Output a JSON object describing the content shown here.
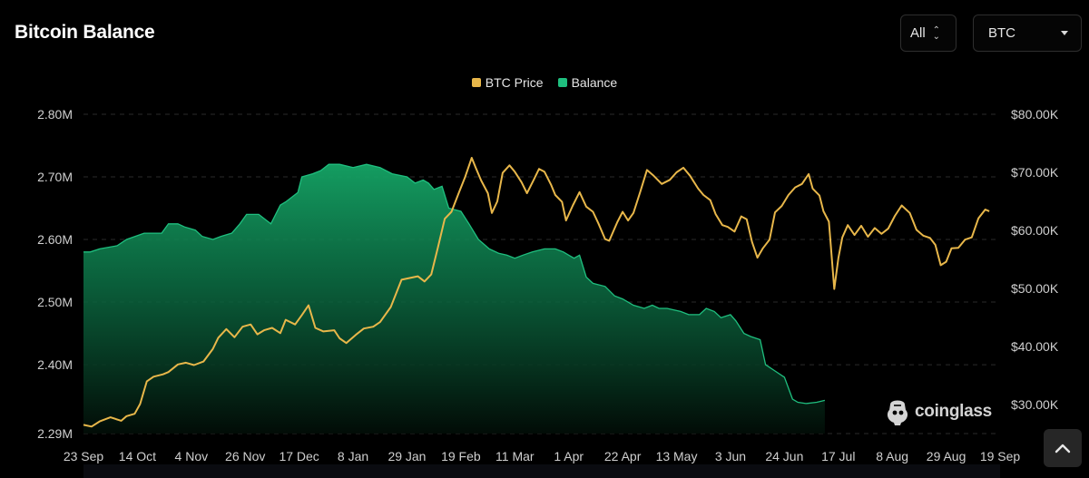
{
  "header": {
    "title": "Bitcoin Balance"
  },
  "controls": {
    "range_label": "All",
    "asset_label": "BTC"
  },
  "legend": [
    {
      "label": "BTC Price",
      "color": "#e8b74a"
    },
    {
      "label": "Balance",
      "color": "#1fbf7f"
    }
  ],
  "watermark": {
    "text": "coinglass"
  },
  "chart_data": {
    "type": "area",
    "x_labels": [
      "23 Sep",
      "14 Oct",
      "4 Nov",
      "26 Nov",
      "17 Dec",
      "8 Jan",
      "29 Jan",
      "19 Feb",
      "11 Mar",
      "1 Apr",
      "22 Apr",
      "13 May",
      "3 Jun",
      "24 Jun",
      "17 Jul",
      "8 Aug",
      "29 Aug",
      "19 Sep"
    ],
    "grid": true,
    "y_left": {
      "ticks": [
        "2.29M",
        "2.40M",
        "2.50M",
        "2.60M",
        "2.70M",
        "2.80M"
      ],
      "tick_values": [
        2.29,
        2.4,
        2.5,
        2.6,
        2.7,
        2.8
      ],
      "ylim": [
        2.29,
        2.8
      ]
    },
    "y_right": {
      "ticks": [
        "$30.00K",
        "$40.00K",
        "$50.00K",
        "$60.00K",
        "$70.00K",
        "$80.00K"
      ],
      "tick_values": [
        30,
        40,
        50,
        60,
        70,
        80
      ],
      "ylim": [
        25,
        80
      ]
    },
    "series": [
      {
        "name": "Balance",
        "axis": "left",
        "color": "#1fbf7f",
        "points": [
          [
            0,
            2.58
          ],
          [
            0.5,
            2.58
          ],
          [
            1.2,
            2.585
          ],
          [
            2.5,
            2.59
          ],
          [
            3.2,
            2.6
          ],
          [
            4.5,
            2.61
          ],
          [
            5.8,
            2.61
          ],
          [
            6.3,
            2.625
          ],
          [
            7.0,
            2.625
          ],
          [
            7.5,
            2.62
          ],
          [
            8.3,
            2.615
          ],
          [
            8.8,
            2.605
          ],
          [
            9.6,
            2.6
          ],
          [
            10.2,
            2.605
          ],
          [
            11.0,
            2.61
          ],
          [
            11.6,
            2.625
          ],
          [
            12.1,
            2.64
          ],
          [
            13.0,
            2.64
          ],
          [
            13.9,
            2.625
          ],
          [
            14.6,
            2.655
          ],
          [
            15.0,
            2.66
          ],
          [
            15.9,
            2.675
          ],
          [
            16.2,
            2.7
          ],
          [
            17.0,
            2.705
          ],
          [
            17.6,
            2.71
          ],
          [
            18.2,
            2.72
          ],
          [
            19.0,
            2.72
          ],
          [
            20.0,
            2.715
          ],
          [
            21.0,
            2.72
          ],
          [
            22.0,
            2.715
          ],
          [
            22.9,
            2.705
          ],
          [
            24.0,
            2.7
          ],
          [
            24.6,
            2.69
          ],
          [
            25.2,
            2.695
          ],
          [
            25.6,
            2.69
          ],
          [
            26.0,
            2.68
          ],
          [
            26.6,
            2.685
          ],
          [
            27.1,
            2.65
          ],
          [
            28.0,
            2.645
          ],
          [
            28.6,
            2.625
          ],
          [
            29.3,
            2.6
          ],
          [
            30.1,
            2.585
          ],
          [
            30.8,
            2.578
          ],
          [
            31.4,
            2.575
          ],
          [
            32.0,
            2.57
          ],
          [
            32.6,
            2.575
          ],
          [
            33.3,
            2.58
          ],
          [
            34.2,
            2.585
          ],
          [
            35.0,
            2.585
          ],
          [
            35.6,
            2.58
          ],
          [
            36.0,
            2.575
          ],
          [
            36.4,
            2.57
          ],
          [
            36.8,
            2.575
          ],
          [
            37.3,
            2.54
          ],
          [
            37.8,
            2.53
          ],
          [
            38.7,
            2.525
          ],
          [
            39.4,
            2.51
          ],
          [
            40.0,
            2.505
          ],
          [
            40.8,
            2.495
          ],
          [
            41.6,
            2.49
          ],
          [
            42.2,
            2.495
          ],
          [
            42.7,
            2.49
          ],
          [
            43.3,
            2.49
          ],
          [
            44.3,
            2.485
          ],
          [
            44.9,
            2.48
          ],
          [
            45.7,
            2.48
          ],
          [
            46.2,
            2.49
          ],
          [
            46.8,
            2.485
          ],
          [
            47.3,
            2.475
          ],
          [
            48.0,
            2.48
          ],
          [
            48.4,
            2.47
          ],
          [
            49.0,
            2.45
          ],
          [
            49.5,
            2.445
          ],
          [
            50.2,
            2.44
          ],
          [
            50.6,
            2.4
          ],
          [
            51.3,
            2.39
          ],
          [
            52.0,
            2.38
          ],
          [
            52.6,
            2.345
          ],
          [
            53.0,
            2.34
          ],
          [
            53.6,
            2.338
          ],
          [
            54.4,
            2.34
          ],
          [
            55.0,
            2.343
          ]
        ]
      },
      {
        "name": "BTC Price",
        "axis": "right",
        "color": "#e8b74a",
        "points": [
          [
            0,
            26.5
          ],
          [
            0.6,
            26.2
          ],
          [
            1.2,
            27.1
          ],
          [
            2.0,
            27.8
          ],
          [
            2.8,
            27.2
          ],
          [
            3.2,
            28.0
          ],
          [
            3.8,
            28.4
          ],
          [
            4.2,
            30.1
          ],
          [
            4.7,
            34.0
          ],
          [
            5.2,
            34.8
          ],
          [
            5.9,
            35.2
          ],
          [
            6.3,
            35.6
          ],
          [
            7.0,
            36.9
          ],
          [
            7.6,
            37.2
          ],
          [
            8.2,
            36.8
          ],
          [
            8.9,
            37.4
          ],
          [
            9.6,
            39.6
          ],
          [
            10.0,
            41.5
          ],
          [
            10.6,
            43.0
          ],
          [
            11.2,
            41.6
          ],
          [
            11.8,
            43.4
          ],
          [
            12.4,
            43.8
          ],
          [
            12.9,
            42.1
          ],
          [
            13.4,
            42.8
          ],
          [
            14.0,
            43.2
          ],
          [
            14.6,
            42.3
          ],
          [
            15.0,
            44.6
          ],
          [
            15.7,
            43.8
          ],
          [
            16.2,
            45.4
          ],
          [
            16.7,
            47.1
          ],
          [
            17.2,
            43.2
          ],
          [
            17.8,
            42.6
          ],
          [
            18.6,
            42.8
          ],
          [
            19.0,
            41.4
          ],
          [
            19.5,
            40.6
          ],
          [
            20.2,
            42.0
          ],
          [
            20.8,
            43.1
          ],
          [
            21.5,
            43.4
          ],
          [
            22.0,
            44.2
          ],
          [
            22.8,
            46.8
          ],
          [
            23.6,
            51.5
          ],
          [
            24.2,
            51.8
          ],
          [
            24.8,
            52.1
          ],
          [
            25.3,
            51.2
          ],
          [
            25.8,
            52.4
          ],
          [
            26.3,
            57.1
          ],
          [
            26.8,
            62.0
          ],
          [
            27.3,
            63.2
          ],
          [
            27.9,
            66.8
          ],
          [
            28.3,
            69.1
          ],
          [
            28.8,
            72.5
          ],
          [
            29.1,
            70.8
          ],
          [
            29.5,
            68.6
          ],
          [
            30.0,
            66.4
          ],
          [
            30.3,
            63.0
          ],
          [
            30.7,
            65.0
          ],
          [
            31.1,
            69.9
          ],
          [
            31.6,
            71.2
          ],
          [
            32.0,
            70.1
          ],
          [
            32.5,
            68.3
          ],
          [
            32.9,
            66.4
          ],
          [
            33.4,
            68.7
          ],
          [
            33.8,
            70.6
          ],
          [
            34.2,
            70.1
          ],
          [
            34.7,
            67.8
          ],
          [
            35.0,
            66.1
          ],
          [
            35.5,
            64.9
          ],
          [
            35.8,
            61.7
          ],
          [
            36.3,
            64.3
          ],
          [
            36.8,
            66.6
          ],
          [
            37.3,
            64.1
          ],
          [
            37.8,
            63.2
          ],
          [
            38.2,
            61.2
          ],
          [
            38.7,
            58.5
          ],
          [
            39.0,
            58.2
          ],
          [
            39.6,
            61.4
          ],
          [
            40.0,
            63.2
          ],
          [
            40.4,
            61.7
          ],
          [
            40.8,
            63.0
          ],
          [
            41.3,
            66.6
          ],
          [
            41.8,
            70.4
          ],
          [
            42.3,
            69.4
          ],
          [
            42.9,
            68.0
          ],
          [
            43.5,
            68.7
          ],
          [
            44.0,
            70.0
          ],
          [
            44.5,
            70.8
          ],
          [
            45.0,
            69.4
          ],
          [
            45.6,
            67.2
          ],
          [
            46.0,
            66.1
          ],
          [
            46.5,
            65.2
          ],
          [
            46.9,
            62.8
          ],
          [
            47.4,
            60.9
          ],
          [
            47.8,
            60.6
          ],
          [
            48.3,
            59.8
          ],
          [
            48.8,
            62.4
          ],
          [
            49.2,
            61.9
          ],
          [
            49.6,
            58.0
          ],
          [
            50.0,
            55.3
          ],
          [
            50.4,
            56.9
          ],
          [
            50.9,
            58.4
          ],
          [
            51.3,
            63.1
          ],
          [
            51.8,
            64.2
          ],
          [
            52.3,
            66.1
          ],
          [
            52.8,
            67.4
          ],
          [
            53.3,
            68.0
          ],
          [
            53.8,
            69.7
          ],
          [
            54.1,
            67.2
          ],
          [
            54.6,
            66.0
          ],
          [
            54.9,
            63.3
          ],
          [
            55.3,
            61.5
          ],
          [
            55.7,
            49.9
          ],
          [
            56.0,
            55.2
          ],
          [
            56.3,
            58.8
          ],
          [
            56.7,
            60.9
          ],
          [
            57.2,
            59.2
          ],
          [
            57.7,
            60.8
          ],
          [
            58.2,
            58.9
          ],
          [
            58.7,
            60.4
          ],
          [
            59.2,
            59.4
          ],
          [
            59.7,
            60.3
          ],
          [
            60.2,
            62.5
          ],
          [
            60.7,
            64.3
          ],
          [
            61.3,
            63.0
          ],
          [
            61.8,
            60.1
          ],
          [
            62.3,
            59.1
          ],
          [
            62.8,
            58.7
          ],
          [
            63.2,
            57.5
          ],
          [
            63.6,
            54.0
          ],
          [
            64.0,
            54.6
          ],
          [
            64.4,
            56.9
          ],
          [
            64.9,
            57.0
          ],
          [
            65.4,
            58.4
          ],
          [
            65.9,
            58.8
          ],
          [
            66.4,
            62.1
          ],
          [
            66.9,
            63.6
          ],
          [
            67.2,
            63.3
          ]
        ]
      }
    ]
  }
}
